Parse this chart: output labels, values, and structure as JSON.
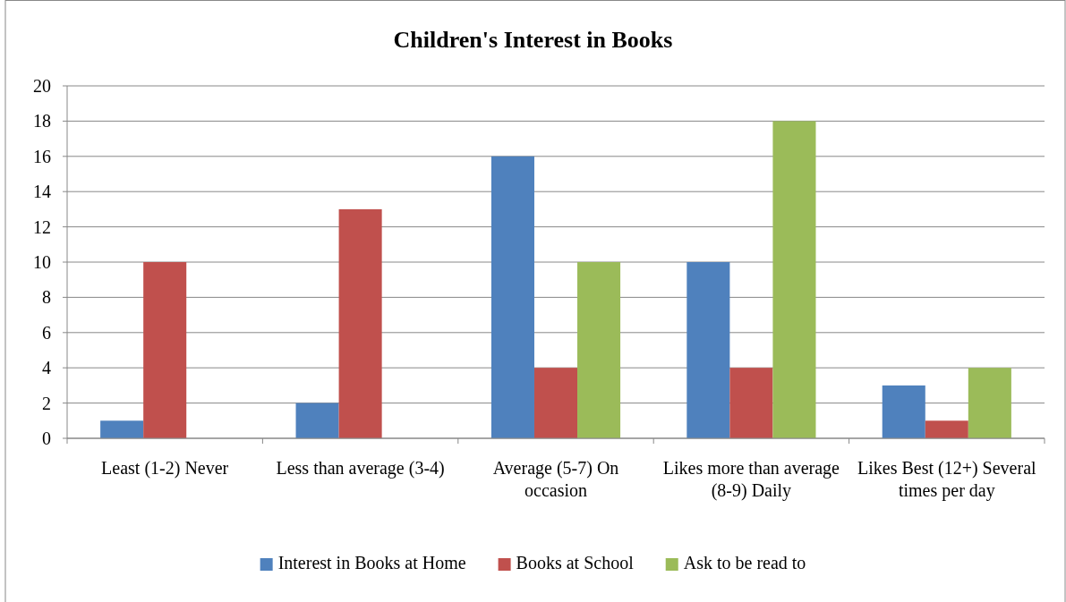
{
  "chart_data": {
    "type": "bar",
    "title": "Children's Interest in Books",
    "categories": [
      "Least (1-2) Never",
      "Less than average (3-4)",
      "Average (5-7) On occasion",
      "Likes more than average (8-9) Daily",
      "Likes Best (12+) Several times per day"
    ],
    "series": [
      {
        "name": "Interest in Books at Home",
        "color": "#4f81bd",
        "values": [
          1,
          2,
          16,
          10,
          3
        ]
      },
      {
        "name": "Books at School",
        "color": "#c0504d",
        "values": [
          10,
          13,
          4,
          4,
          1
        ]
      },
      {
        "name": "Ask to be read to",
        "color": "#9bbb59",
        "values": [
          null,
          null,
          10,
          18,
          4
        ]
      }
    ],
    "ylim": [
      0,
      20
    ],
    "yticks": [
      0,
      2,
      4,
      6,
      8,
      10,
      12,
      14,
      16,
      18,
      20
    ],
    "grid": "y",
    "legend": "bottom"
  }
}
